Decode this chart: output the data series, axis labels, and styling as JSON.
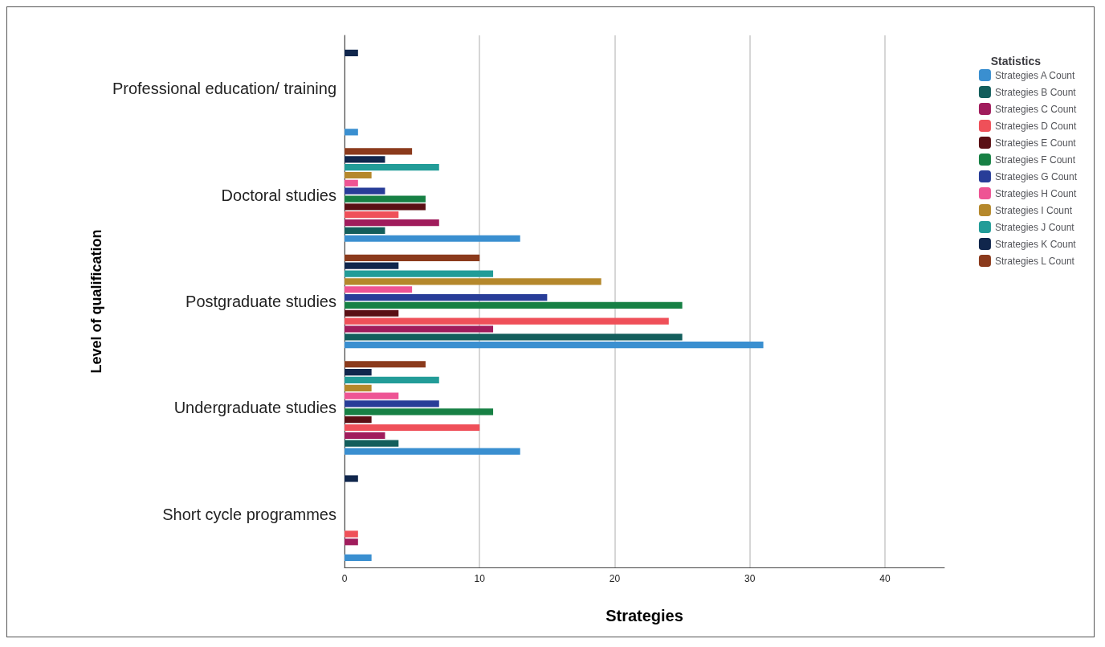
{
  "chart_data": {
    "type": "bar",
    "orientation": "horizontal",
    "xlabel": "Strategies",
    "ylabel": "Level of qualification",
    "legend_title": "Statistics",
    "legend": "top right",
    "grid": "x",
    "categories": [
      "Professional education/ training",
      "Doctoral studies",
      "Postgraduate studies",
      "Undergraduate studies",
      "Short cycle programmes"
    ],
    "xlim": [
      0,
      44.4
    ],
    "xticks": [
      0,
      10,
      20,
      30,
      40
    ],
    "series": [
      {
        "name": "Strategies A Count",
        "color": "#3a8fd0",
        "values": [
          1,
          13,
          31,
          13,
          2
        ]
      },
      {
        "name": "Strategies B Count",
        "color": "#135e5c",
        "values": [
          0,
          3,
          25,
          4,
          0
        ]
      },
      {
        "name": "Strategies C Count",
        "color": "#a01c5c",
        "values": [
          0,
          7,
          11,
          3,
          1
        ]
      },
      {
        "name": "Strategies D Count",
        "color": "#ef5059",
        "values": [
          0,
          4,
          24,
          10,
          1
        ]
      },
      {
        "name": "Strategies E Count",
        "color": "#5a0f14",
        "values": [
          0,
          6,
          4,
          2,
          0
        ]
      },
      {
        "name": "Strategies F Count",
        "color": "#178044",
        "values": [
          0,
          6,
          25,
          11,
          0
        ]
      },
      {
        "name": "Strategies G Count",
        "color": "#283d98",
        "values": [
          0,
          3,
          15,
          7,
          0
        ]
      },
      {
        "name": "Strategies H Count",
        "color": "#ee5494",
        "values": [
          0,
          1,
          5,
          4,
          0
        ]
      },
      {
        "name": "Strategies I Count",
        "color": "#b5882c",
        "values": [
          0,
          2,
          19,
          2,
          0
        ]
      },
      {
        "name": "Strategies J Count",
        "color": "#229c98",
        "values": [
          0,
          7,
          11,
          7,
          0
        ]
      },
      {
        "name": "Strategies K Count",
        "color": "#10264c",
        "values": [
          1,
          3,
          4,
          2,
          1
        ]
      },
      {
        "name": "Strategies L Count",
        "color": "#8b3a1c",
        "values": [
          0,
          5,
          10,
          6,
          0
        ]
      }
    ]
  }
}
